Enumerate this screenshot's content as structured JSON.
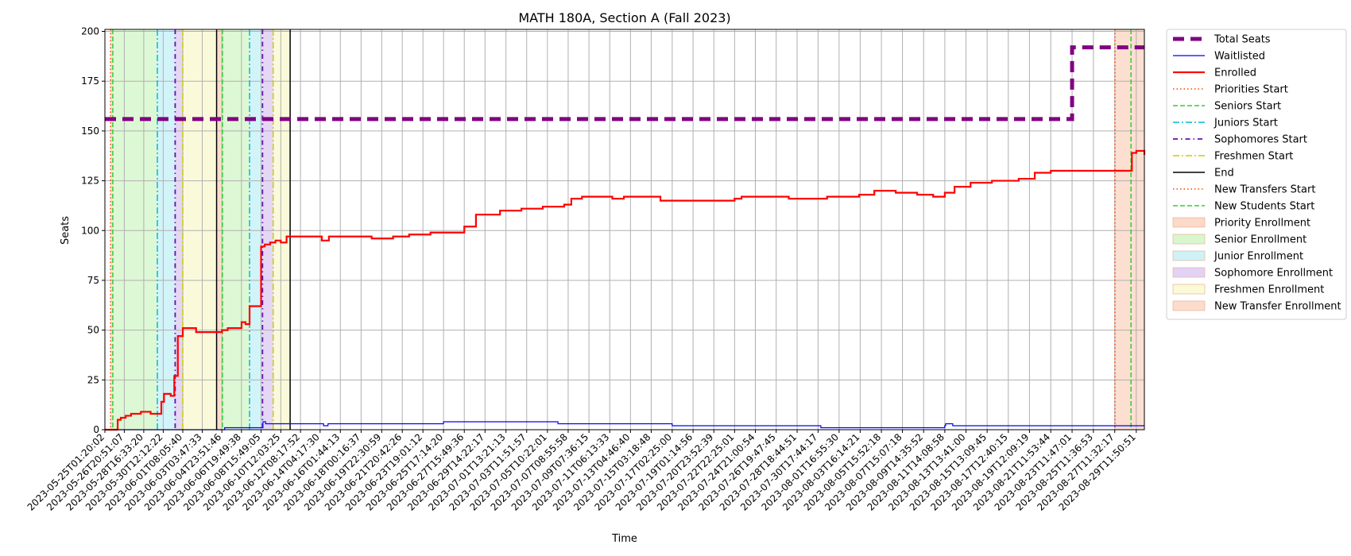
{
  "chart_data": {
    "type": "line",
    "title": "MATH 180A, Section A (Fall 2023)",
    "xlabel": "Time",
    "ylabel": "Seats",
    "xlim": [
      "2023-05-25T01:20:02",
      "2023-08-30T06:00:00"
    ],
    "ylim": [
      0,
      201
    ],
    "yticks": [
      0,
      25,
      50,
      75,
      100,
      125,
      150,
      175,
      200
    ],
    "grid": true,
    "legend_position": "outside-right",
    "x_tick_labels": [
      "2023-05-25T01:20:02",
      "2023-05-26T20:51:07",
      "2023-05-28T16:33:20",
      "2023-05-30T12:12:22",
      "2023-06-01T08:05:40",
      "2023-06-03T03:47:33",
      "2023-06-04T23:51:46",
      "2023-06-06T19:49:38",
      "2023-06-08T15:49:05",
      "2023-06-10T12:03:25",
      "2023-06-12T08:17:52",
      "2023-06-14T04:17:30",
      "2023-06-16T01:44:13",
      "2023-06-18T00:16:37",
      "2023-06-19T22:30:59",
      "2023-06-21T20:42:26",
      "2023-06-23T19:01:12",
      "2023-06-25T17:14:20",
      "2023-06-27T15:49:36",
      "2023-06-29T14:22:17",
      "2023-07-01T13:21:13",
      "2023-07-03T11:51:57",
      "2023-07-05T10:22:01",
      "2023-07-07T08:55:58",
      "2023-07-09T07:36:15",
      "2023-07-11T06:13:33",
      "2023-07-13T04:46:40",
      "2023-07-15T03:18:48",
      "2023-07-17T02:25:00",
      "2023-07-19T01:14:56",
      "2023-07-20T23:52:39",
      "2023-07-22T22:25:01",
      "2023-07-24T21:00:54",
      "2023-07-26T19:47:45",
      "2023-07-28T18:44:51",
      "2023-07-30T17:44:17",
      "2023-08-01T16:55:30",
      "2023-08-03T16:14:21",
      "2023-08-05T15:52:18",
      "2023-08-07T15:07:18",
      "2023-08-09T14:35:52",
      "2023-08-11T14:08:58",
      "2023-08-13T13:41:00",
      "2023-08-15T13:09:45",
      "2023-08-17T12:40:15",
      "2023-08-19T12:09:19",
      "2023-08-21T11:53:44",
      "2023-08-23T11:47:01",
      "2023-08-25T11:36:53",
      "2023-08-27T11:32:17",
      "2023-08-29T11:50:51"
    ],
    "series": [
      {
        "name": "Total Seats",
        "color": "#800080",
        "style": "dashed-thick",
        "x": [
          "2023-05-25T01:20:02",
          "2023-08-23T11:40:00",
          "2023-08-23T11:47:01",
          "2023-08-30T06:00:00"
        ],
        "y": [
          156,
          156,
          192,
          192
        ]
      },
      {
        "name": "Waitlisted",
        "color": "#0000ff",
        "style": "solid-thin",
        "x": [
          "2023-05-25T01:20:02",
          "2023-06-04T23:51:46",
          "2023-06-05T06:00:00",
          "2023-06-08T15:49:05",
          "2023-06-08T20:00:00",
          "2023-06-09T02:00:00",
          "2023-06-14T04:17:30",
          "2023-06-14T12:00:00",
          "2023-06-14T22:00:00",
          "2023-06-25T17:14:20",
          "2023-07-03T12:00:00",
          "2023-07-06T10:00:00",
          "2023-07-17T02:25:00",
          "2023-07-31T00:00:00",
          "2023-08-11T14:00:00",
          "2023-08-11T16:00:00",
          "2023-08-12T08:00:00",
          "2023-08-30T06:00:00"
        ],
        "y": [
          0,
          0,
          1,
          1,
          4,
          3,
          3,
          2,
          3,
          4,
          4,
          3,
          2,
          1,
          2,
          3,
          2,
          2
        ]
      },
      {
        "name": "Enrolled",
        "color": "#ff0000",
        "style": "solid-thick",
        "x": [
          "2023-05-25T01:20:02",
          "2023-05-26T01:00:00",
          "2023-05-26T06:00:00",
          "2023-05-26T13:00:00",
          "2023-05-27T00:00:00",
          "2023-05-27T12:00:00",
          "2023-05-28T10:00:00",
          "2023-05-29T08:00:00",
          "2023-05-30T01:00:00",
          "2023-05-30T08:00:00",
          "2023-05-30T14:00:00",
          "2023-05-31T05:00:00",
          "2023-05-31T13:00:00",
          "2023-05-31T21:00:00",
          "2023-06-01T08:05:40",
          "2023-06-02T14:00:00",
          "2023-06-04T12:00:00",
          "2023-06-05T00:00:00",
          "2023-06-05T13:00:00",
          "2023-06-06T10:00:00",
          "2023-06-06T20:00:00",
          "2023-06-07T05:00:00",
          "2023-06-07T14:00:00",
          "2023-06-08T08:00:00",
          "2023-06-08T15:49:05",
          "2023-06-09T00:00:00",
          "2023-06-09T12:00:00",
          "2023-06-10T00:00:00",
          "2023-06-10T12:03:25",
          "2023-06-11T01:00:00",
          "2023-06-11T12:00:00",
          "2023-06-14T04:17:30",
          "2023-06-14T08:00:00",
          "2023-06-15T00:00:00",
          "2023-06-19T00:00:00",
          "2023-06-21T00:00:00",
          "2023-06-22T12:00:00",
          "2023-06-24T12:00:00",
          "2023-06-27T15:49:36",
          "2023-06-28T18:00:00",
          "2023-07-01T00:00:00",
          "2023-07-03T00:00:00",
          "2023-07-05T00:00:00",
          "2023-07-07T00:00:00",
          "2023-07-07T16:00:00",
          "2023-07-08T16:00:00",
          "2023-07-11T12:00:00",
          "2023-07-12T14:00:00",
          "2023-07-16T00:00:00",
          "2023-07-20T14:00:00",
          "2023-07-22T22:25:01",
          "2023-07-23T14:00:00",
          "2023-07-28T00:00:00",
          "2023-07-31T14:00:00",
          "2023-08-03T14:00:00",
          "2023-08-05T00:00:00",
          "2023-08-07T00:00:00",
          "2023-08-09T00:00:00",
          "2023-08-10T12:00:00",
          "2023-08-11T14:08:58",
          "2023-08-12T12:00:00",
          "2023-08-14T00:00:00",
          "2023-08-16T00:00:00",
          "2023-08-18T12:00:00",
          "2023-08-20T00:00:00",
          "2023-08-21T12:00:00",
          "2023-08-27T18:00:00",
          "2023-08-28T10:00:00",
          "2023-08-29T02:00:00",
          "2023-08-29T12:00:00",
          "2023-08-30T06:00:00"
        ],
        "y": [
          0,
          0,
          5,
          6,
          7,
          8,
          9,
          8,
          8,
          14,
          18,
          17,
          27,
          47,
          51,
          49,
          49,
          50,
          51,
          51,
          54,
          53,
          62,
          62,
          92,
          93,
          94,
          95,
          94,
          97,
          97,
          97,
          95,
          97,
          96,
          97,
          98,
          99,
          102,
          108,
          110,
          111,
          112,
          113,
          116,
          117,
          116,
          117,
          115,
          115,
          116,
          117,
          116,
          117,
          118,
          120,
          119,
          118,
          117,
          119,
          122,
          124,
          125,
          126,
          129,
          130,
          130,
          130,
          139,
          140,
          138
        ]
      }
    ],
    "vertical_lines": [
      {
        "name": "Priorities Start",
        "color": "#ff4500",
        "style": "dotted",
        "x": [
          "2023-05-25T14:00:00",
          "2023-08-27T12:00:00"
        ]
      },
      {
        "name": "Seniors Start",
        "color": "#32cd32",
        "style": "dashed",
        "x": [
          "2023-05-25T19:00:00",
          "2023-06-05T01:00:00",
          "2023-08-29T00:00:00"
        ]
      },
      {
        "name": "Juniors Start",
        "color": "#00bcd4",
        "style": "dashdot",
        "x": [
          "2023-05-29T23:00:00",
          "2023-06-07T14:00:00"
        ]
      },
      {
        "name": "Sophomores Start",
        "color": "#6a0dad",
        "style": "dashdot-dense",
        "x": [
          "2023-05-31T15:00:00",
          "2023-06-08T19:00:00"
        ]
      },
      {
        "name": "Freshmen Start",
        "color": "#cccc00",
        "style": "dashdot",
        "x": [
          "2023-06-01T08:05:40",
          "2023-06-09T19:00:00"
        ]
      },
      {
        "name": "End",
        "color": "#000000",
        "style": "solid",
        "x": [
          "2023-06-04T12:00:00",
          "2023-06-11T09:00:00"
        ]
      },
      {
        "name": "New Transfers Start",
        "color": "#ff4500",
        "style": "dotted",
        "x": []
      },
      {
        "name": "New Students Start",
        "color": "#32cd32",
        "style": "dashed",
        "x": []
      }
    ],
    "shaded_regions": [
      {
        "name": "Priority Enrollment",
        "color": "#fcd9c8",
        "spans": [
          [
            "2023-05-25T14:00:00",
            "2023-05-25T19:00:00"
          ],
          [
            "2023-06-04T12:00:00",
            "2023-06-05T01:00:00"
          ]
        ]
      },
      {
        "name": "Senior Enrollment",
        "color": "#d9f7cf",
        "spans": [
          [
            "2023-05-25T19:00:00",
            "2023-05-29T23:00:00"
          ],
          [
            "2023-06-05T01:00:00",
            "2023-06-07T14:00:00"
          ]
        ]
      },
      {
        "name": "Junior Enrollment",
        "color": "#cdf3f8",
        "spans": [
          [
            "2023-05-29T23:00:00",
            "2023-05-31T15:00:00"
          ],
          [
            "2023-06-07T14:00:00",
            "2023-06-08T19:00:00"
          ]
        ]
      },
      {
        "name": "Sophomore Enrollment",
        "color": "#e2d2f5",
        "spans": [
          [
            "2023-05-31T15:00:00",
            "2023-06-01T08:05:40"
          ],
          [
            "2023-06-08T19:00:00",
            "2023-06-09T19:00:00"
          ]
        ]
      },
      {
        "name": "Freshmen Enrollment",
        "color": "#fafad7",
        "spans": [
          [
            "2023-06-01T08:05:40",
            "2023-06-04T12:00:00"
          ],
          [
            "2023-06-09T19:00:00",
            "2023-06-11T09:00:00"
          ]
        ]
      },
      {
        "name": "New Transfer Enrollment",
        "color": "#fcdccc",
        "spans": [
          [
            "2023-08-27T12:00:00",
            "2023-08-29T00:00:00"
          ],
          [
            "2023-08-29T00:00:00",
            "2023-08-30T06:00:00"
          ]
        ]
      }
    ],
    "legend": [
      {
        "label": "Total Seats",
        "kind": "line",
        "color": "#800080",
        "style": "dashed-thick"
      },
      {
        "label": "Waitlisted",
        "kind": "line",
        "color": "#0000ff",
        "style": "solid-thin"
      },
      {
        "label": "Enrolled",
        "kind": "line",
        "color": "#ff0000",
        "style": "solid-thick"
      },
      {
        "label": "Priorities Start",
        "kind": "line",
        "color": "#ff4500",
        "style": "dotted"
      },
      {
        "label": "Seniors Start",
        "kind": "line",
        "color": "#32cd32",
        "style": "dashed"
      },
      {
        "label": "Juniors Start",
        "kind": "line",
        "color": "#00bcd4",
        "style": "dashdot"
      },
      {
        "label": "Sophomores Start",
        "kind": "line",
        "color": "#6a0dad",
        "style": "dashdot-dense"
      },
      {
        "label": "Freshmen Start",
        "kind": "line",
        "color": "#cccc00",
        "style": "dashdot"
      },
      {
        "label": "End",
        "kind": "line",
        "color": "#000000",
        "style": "solid"
      },
      {
        "label": "New Transfers Start",
        "kind": "line",
        "color": "#ff4500",
        "style": "dotted"
      },
      {
        "label": "New Students Start",
        "kind": "line",
        "color": "#32cd32",
        "style": "dashed"
      },
      {
        "label": "Priority Enrollment",
        "kind": "patch",
        "color": "#fcd9c8"
      },
      {
        "label": "Senior Enrollment",
        "kind": "patch",
        "color": "#d9f7cf"
      },
      {
        "label": "Junior Enrollment",
        "kind": "patch",
        "color": "#cdf3f8"
      },
      {
        "label": "Sophomore Enrollment",
        "kind": "patch",
        "color": "#e2d2f5"
      },
      {
        "label": "Freshmen Enrollment",
        "kind": "patch",
        "color": "#fafad7"
      },
      {
        "label": "New Transfer Enrollment",
        "kind": "patch",
        "color": "#fcdccc"
      }
    ]
  }
}
